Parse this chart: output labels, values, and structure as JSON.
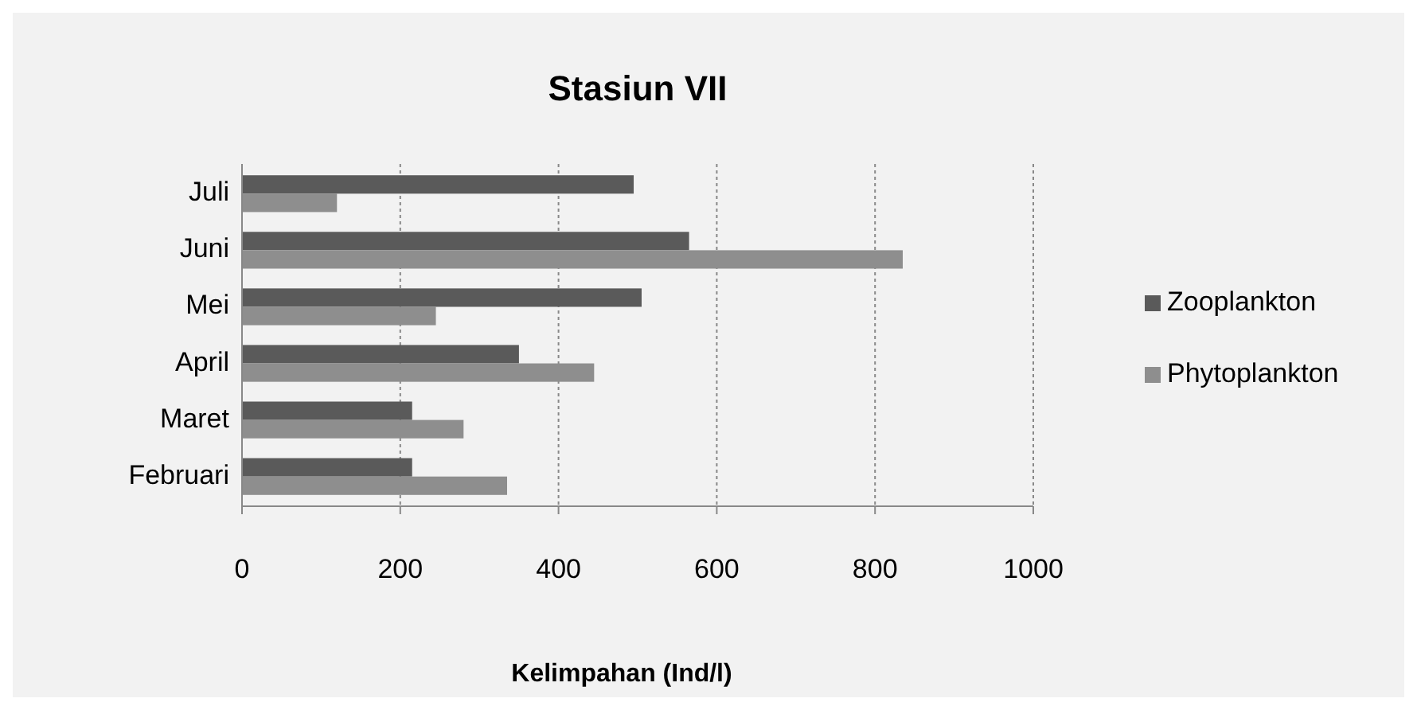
{
  "chart_data": {
    "type": "bar",
    "orientation": "horizontal",
    "title": "Stasiun VII",
    "xlabel": "Kelimpahan (Ind/l)",
    "categories": [
      "Juli",
      "Juni",
      "Mei",
      "April",
      "Maret",
      "Februari"
    ],
    "series": [
      {
        "name": "Zooplankton",
        "color": "#5a5a5a",
        "values": [
          495,
          565,
          505,
          350,
          215,
          215
        ]
      },
      {
        "name": "Phytoplankton",
        "color": "#8e8e8e",
        "values": [
          120,
          835,
          245,
          445,
          280,
          335
        ]
      }
    ],
    "xlim": [
      0,
      1000
    ],
    "xticks": [
      0,
      200,
      400,
      600,
      800,
      1000
    ],
    "grid": "x",
    "legend": "right"
  }
}
